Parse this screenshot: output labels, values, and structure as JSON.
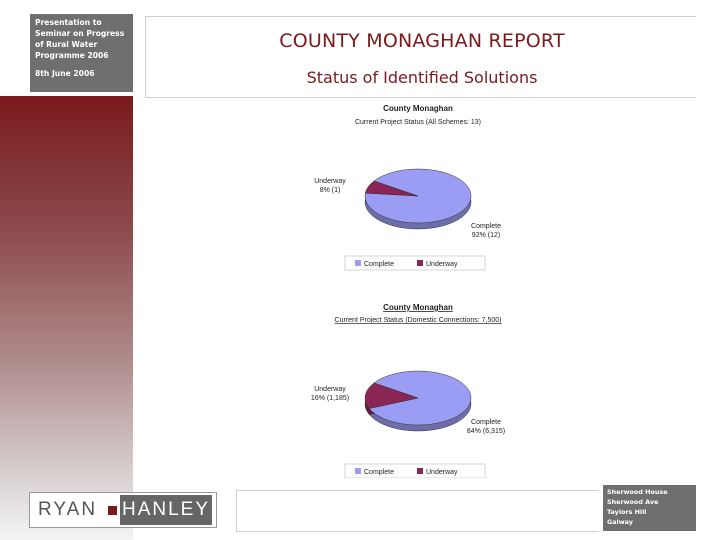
{
  "sidebar": {
    "info_lines": [
      "Presentation to",
      "Seminar on Progress",
      "of Rural Water",
      "Programme 2006"
    ],
    "date": "8th June 2006"
  },
  "header": {
    "title": "COUNTY MONAGHAN REPORT",
    "subtitle": "Status of Identified Solutions"
  },
  "colors": {
    "complete": "#9b9cf3",
    "underway": "#8a2655",
    "accent": "#7a1a1c"
  },
  "chart_data": [
    {
      "type": "pie",
      "title": "County Monaghan",
      "subtitle": "Current Project Status (All Schemes: 13)",
      "slices": [
        {
          "name": "Complete",
          "value": 12,
          "label": "Complete",
          "sublabel": "92% (12)"
        },
        {
          "name": "Underway",
          "value": 1,
          "label": "Underway",
          "sublabel": "8% (1)"
        }
      ],
      "legend": [
        "Complete",
        "Underway"
      ],
      "legend_position": "bottom"
    },
    {
      "type": "pie",
      "title": "County Monaghan",
      "subtitle": "Current Project Status (Domestic Connections: 7,500)",
      "slices": [
        {
          "name": "Complete",
          "value": 6315,
          "label": "Complete",
          "sublabel": "84% (6,315)"
        },
        {
          "name": "Underway",
          "value": 1185,
          "label": "Underway",
          "sublabel": "16% (1,185)"
        }
      ],
      "legend": [
        "Complete",
        "Underway"
      ],
      "legend_position": "bottom"
    }
  ],
  "logo": {
    "left": "RYAN",
    "right": "HANLEY"
  },
  "address": [
    "Sherwood House",
    "Sherwood Ave",
    "Taylors Hill",
    "Galway"
  ]
}
